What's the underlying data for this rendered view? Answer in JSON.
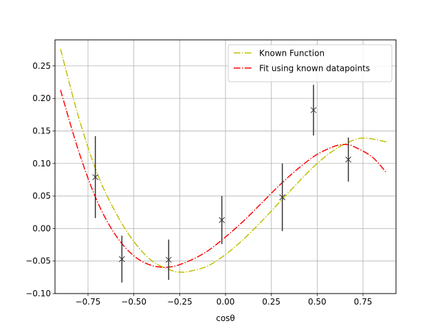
{
  "chart_data": {
    "type": "line",
    "title": "",
    "xlabel": "cosθ",
    "ylabel": "",
    "xlim": [
      -0.93,
      0.93
    ],
    "ylim": [
      -0.1,
      0.29
    ],
    "grid": true,
    "legend_position": "top-right",
    "x_ticks": [
      -0.75,
      -0.5,
      -0.25,
      0.0,
      0.25,
      0.5,
      0.75
    ],
    "x_tick_labels": [
      "−0.75",
      "−0.50",
      "−0.25",
      "0.00",
      "0.25",
      "0.50",
      "0.75"
    ],
    "y_ticks": [
      -0.1,
      -0.05,
      0.0,
      0.05,
      0.1,
      0.15,
      0.2,
      0.25
    ],
    "y_tick_labels": [
      "−0.10",
      "−0.05",
      "0.00",
      "0.05",
      "0.10",
      "0.15",
      "0.20",
      "0.25"
    ],
    "series": [
      {
        "name": "Known Function",
        "kind": "line",
        "style": "dash-dot",
        "color": "#bfbf00",
        "x": [
          -0.9,
          -0.8,
          -0.7,
          -0.6,
          -0.5,
          -0.4,
          -0.3,
          -0.25,
          -0.2,
          -0.1,
          0.0,
          0.1,
          0.2,
          0.3,
          0.4,
          0.5,
          0.6,
          0.7,
          0.77,
          0.88
        ],
        "y": [
          0.276,
          0.17,
          0.085,
          0.025,
          -0.02,
          -0.05,
          -0.064,
          -0.067,
          -0.066,
          -0.058,
          -0.04,
          -0.016,
          0.012,
          0.042,
          0.072,
          0.1,
          0.122,
          0.136,
          0.139,
          0.133
        ]
      },
      {
        "name": "Fit using known datapoints",
        "kind": "line",
        "style": "dash-dot",
        "color": "#ff0000",
        "x": [
          -0.9,
          -0.8,
          -0.7,
          -0.6,
          -0.5,
          -0.4,
          -0.3,
          -0.2,
          -0.1,
          0.0,
          0.1,
          0.2,
          0.3,
          0.4,
          0.5,
          0.6,
          0.66,
          0.7,
          0.8,
          0.88
        ],
        "y": [
          0.213,
          0.118,
          0.042,
          -0.01,
          -0.042,
          -0.057,
          -0.059,
          -0.05,
          -0.035,
          -0.013,
          0.012,
          0.04,
          0.068,
          0.093,
          0.114,
          0.127,
          0.129,
          0.126,
          0.11,
          0.085
        ]
      },
      {
        "name": "",
        "kind": "errorbar",
        "marker": "x",
        "color": "#333333",
        "x": [
          -0.71,
          -0.565,
          -0.31,
          -0.02,
          0.31,
          0.48,
          0.67
        ],
        "y": [
          0.079,
          -0.047,
          -0.048,
          0.013,
          0.048,
          0.182,
          0.106
        ],
        "yerr": [
          0.063,
          0.036,
          0.031,
          0.037,
          0.052,
          0.039,
          0.034
        ]
      }
    ]
  }
}
